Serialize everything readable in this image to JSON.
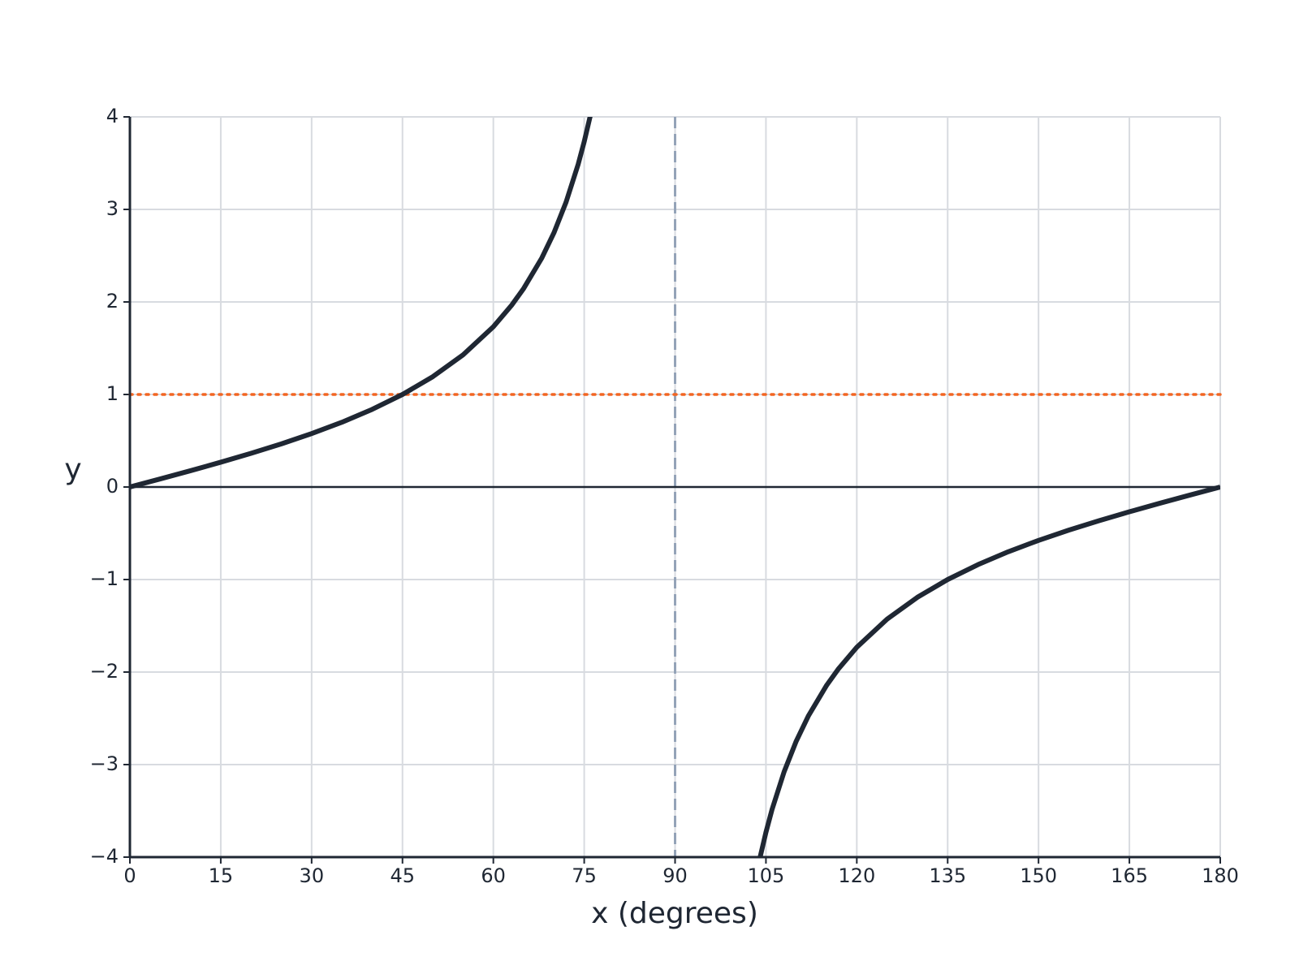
{
  "chart_data": {
    "type": "line",
    "xlabel": "x (degrees)",
    "ylabel": "y",
    "color": "#1f2733",
    "x": [
      0,
      5,
      10,
      15,
      20,
      25,
      30,
      35,
      40,
      45,
      50,
      55,
      60,
      63,
      65,
      68,
      70,
      72,
      74,
      75,
      76,
      90,
      104,
      105,
      106,
      108,
      110,
      112,
      115,
      117,
      120,
      125,
      130,
      135,
      140,
      145,
      150,
      155,
      160,
      165,
      170,
      175,
      180
    ],
    "values": [
      0,
      0.087,
      0.176,
      0.268,
      0.364,
      0.466,
      0.577,
      0.7,
      0.839,
      1,
      1.192,
      1.428,
      1.732,
      1.963,
      2.145,
      2.475,
      2.747,
      3.078,
      3.487,
      3.732,
      4.011,
      null,
      -4.011,
      -3.732,
      -3.487,
      -3.078,
      -2.747,
      -2.475,
      -2.145,
      -1.963,
      -1.732,
      -1.428,
      -1.192,
      -1,
      -0.839,
      -0.7,
      -0.577,
      -0.466,
      -0.364,
      -0.268,
      -0.176,
      -0.087,
      0
    ],
    "xlim": [
      0,
      180
    ],
    "ylim": [
      -4,
      4
    ],
    "xticks": [
      0,
      15,
      30,
      45,
      60,
      75,
      90,
      105,
      120,
      135,
      150,
      165,
      180
    ],
    "yticks": [
      {
        "value": -4,
        "label": "−4"
      },
      {
        "value": -3,
        "label": "−3"
      },
      {
        "value": -2,
        "label": "−2"
      },
      {
        "value": -1,
        "label": "−1"
      },
      0,
      1,
      2,
      3,
      4
    ],
    "grid": true,
    "hlines": [
      {
        "value": 0,
        "color": "#1f2733",
        "style": "solid"
      },
      {
        "value": 1,
        "color": "#f26522",
        "style": "dotted"
      }
    ],
    "vlines": [
      {
        "value": 90,
        "color": "#94a3b8",
        "style": "dashed"
      }
    ]
  }
}
